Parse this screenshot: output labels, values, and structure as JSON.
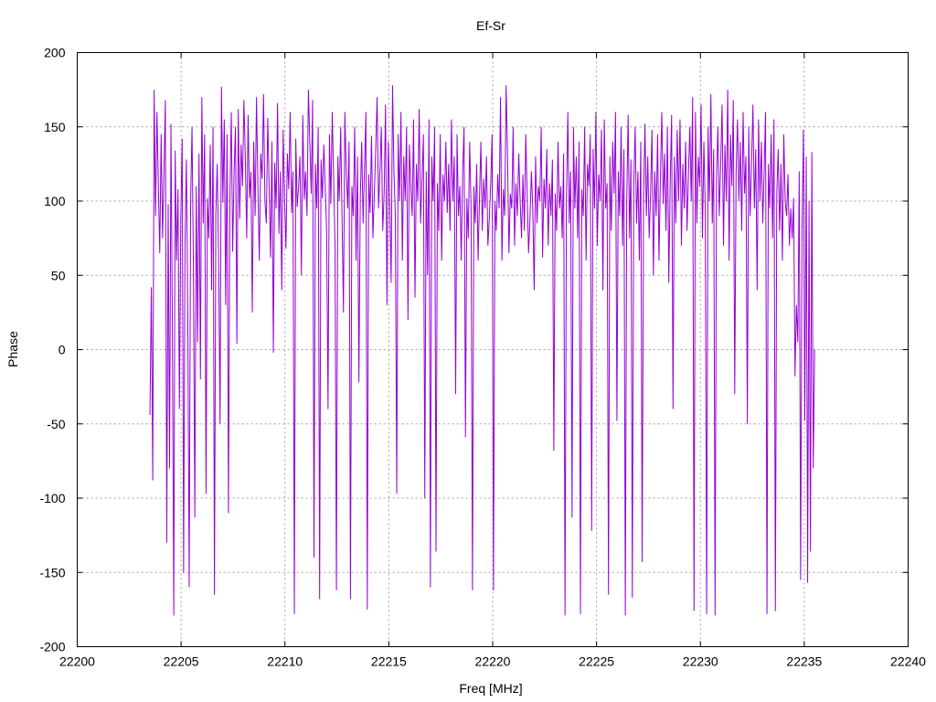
{
  "chart_data": {
    "type": "line",
    "title": "Ef-Sr",
    "xlabel": "Freq [MHz]",
    "ylabel": "Phase",
    "xlim": [
      22200,
      22240
    ],
    "ylim": [
      -200,
      200
    ],
    "xticks": [
      "22200",
      "22205",
      "22210",
      "22215",
      "22220",
      "22225",
      "22230",
      "22235",
      "22240"
    ],
    "yticks": [
      "200",
      "150",
      "100",
      "50",
      "0",
      "-50",
      "-100",
      "-150",
      "-200"
    ],
    "grid": true,
    "series": [
      {
        "color": "#9400d3",
        "x_start": 22203.5,
        "x_end": 22235.5,
        "values": [
          -44,
          42,
          -88,
          175,
          90,
          160,
          110,
          65,
          145,
          75,
          120,
          168,
          -130,
          98,
          -80,
          152,
          15,
          -179,
          134,
          60,
          108,
          -40,
          88,
          142,
          -150,
          70,
          128,
          20,
          -160,
          99,
          150,
          55,
          -113,
          110,
          5,
          132,
          -20,
          170,
          85,
          145,
          -97,
          102,
          75,
          138,
          40,
          150,
          -165,
          92,
          125,
          60,
          -50,
          177,
          99,
          155,
          30,
          145,
          -110,
          100,
          160,
          66,
          120,
          150,
          4,
          162,
          88,
          138,
          110,
          168,
          130,
          75,
          158,
          102,
          120,
          25,
          140,
          90,
          170,
          108,
          60,
          132,
          115,
          172,
          100,
          85,
          156,
          110,
          62,
          140,
          -2,
          126,
          95,
          166,
          78,
          120,
          40,
          148,
          100,
          68,
          132,
          108,
          160,
          92,
          120,
          -178,
          142,
          96,
          110,
          130,
          50,
          158,
          101,
          120,
          90,
          175,
          140,
          105,
          168,
          -140,
          125,
          95,
          150,
          -168,
          128,
          102,
          138,
          110,
          80,
          -40,
          145,
          98,
          160,
          115,
          70,
          -162,
          130,
          100,
          150,
          88,
          25,
          160,
          120,
          95,
          140,
          -168,
          110,
          90,
          150,
          60,
          130,
          -22,
          102,
          140,
          85,
          122,
          160,
          -175,
          118,
          92,
          144,
          75,
          105,
          135,
          170,
          95,
          120,
          150,
          80,
          105,
          165,
          30,
          140,
          100,
          45,
          178,
          120,
          90,
          -97,
          145,
          100,
          160,
          60,
          130,
          100,
          150,
          20,
          138,
          110,
          90,
          155,
          35,
          125,
          100,
          162,
          85,
          115,
          145,
          -100,
          120,
          50,
          155,
          -160,
          130,
          100,
          150,
          -136,
          112,
          80,
          145,
          60,
          118,
          100,
          140,
          92,
          125,
          80,
          155,
          100,
          130,
          -30,
          145,
          90,
          110,
          60,
          120,
          150,
          -59,
          102,
          75,
          140,
          95,
          -162,
          110,
          85,
          125,
          60,
          102,
          140,
          80,
          115,
          95,
          130,
          70,
          88,
          112,
          145,
          -162,
          100,
          80,
          118,
          95,
          170,
          60,
          108,
          90,
          178,
          130,
          65,
          105,
          95,
          150,
          70,
          112,
          90,
          132,
          100,
          75,
          118,
          80,
          145,
          105,
          65,
          88,
          120,
          95,
          40,
          130,
          85,
          110,
          100,
          150,
          62,
          115,
          95,
          135,
          70,
          112,
          90,
          128,
          -68,
          105,
          80,
          140,
          95,
          110,
          75,
          132,
          -179,
          100,
          160,
          85,
          120,
          -113,
          150,
          95,
          130,
          75,
          140,
          -178,
          108,
          90,
          150,
          60,
          125,
          110,
          145,
          -122,
          135,
          95,
          160,
          70,
          118,
          100,
          148,
          40,
          155,
          95,
          112,
          -165,
          130,
          80,
          140,
          105,
          160,
          -48,
          120,
          90,
          150,
          70,
          135,
          -179,
          100,
          158,
          75,
          128,
          -167,
          110,
          150,
          85,
          120,
          60,
          140,
          -143,
          100,
          152,
          90,
          130,
          75,
          105,
          148,
          50,
          120,
          90,
          145,
          60,
          115,
          160,
          98,
          132,
          80,
          150,
          45,
          112,
          158,
          -40,
          130,
          85,
          148,
          100,
          155,
          70,
          125,
          95,
          140,
          80,
          118,
          150,
          100,
          170,
          -176,
          160,
          85,
          130,
          110,
          165,
          75,
          140,
          95,
          -178,
          150,
          100,
          172,
          85,
          135,
          -179,
          115,
          150,
          90,
          125,
          165,
          70,
          138,
          100,
          175,
          60,
          145,
          110,
          168,
          -30,
          120,
          155,
          100,
          140,
          80,
          160,
          105,
          130,
          -50,
          150,
          90,
          125,
          165,
          95,
          135,
          40,
          155,
          100,
          140,
          85,
          120,
          160,
          -178,
          125,
          95,
          145,
          75,
          155,
          -176,
          105,
          135,
          80,
          125,
          60,
          145,
          100,
          90,
          118,
          70,
          95,
          75,
          102,
          -18,
          30,
          5,
          120,
          -155,
          80,
          148,
          -48,
          130,
          -157,
          100,
          -136,
          133,
          -80,
          0
        ]
      }
    ]
  }
}
